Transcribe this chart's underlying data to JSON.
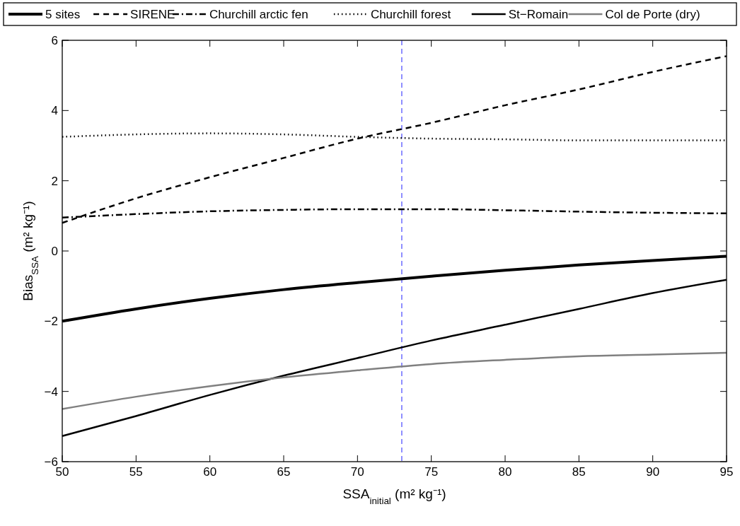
{
  "chart_data": {
    "type": "line",
    "xlabel": "SSA$_{initial}$ (m² kg⁻¹)",
    "ylabel": "Bias$_{SSA}$ (m² kg⁻¹)",
    "x": [
      50,
      55,
      60,
      65,
      70,
      75,
      80,
      85,
      90,
      95
    ],
    "xlim": [
      50,
      95
    ],
    "xticks": [
      50,
      55,
      60,
      65,
      70,
      75,
      80,
      85,
      90,
      95
    ],
    "ylim": [
      -6,
      6
    ],
    "yticks": [
      -6,
      -4,
      -2,
      0,
      2,
      4,
      6
    ],
    "grid": false,
    "legend": "top",
    "marker": "none",
    "series": [
      {
        "name": "5 sites",
        "color": "#000000",
        "line_style": "solid",
        "values": [
          -2,
          -1.65,
          -1.35,
          -1.1,
          -0.9,
          -0.72,
          -0.55,
          -0.4,
          -0.27,
          -0.15
        ]
      },
      {
        "name": "SIRENE",
        "color": "#000000",
        "line_style": "dashed",
        "values": [
          0.8,
          1.5,
          2.1,
          2.65,
          3.2,
          3.65,
          4.15,
          4.6,
          5.1,
          5.55
        ]
      },
      {
        "name": "Churchill arctic fen",
        "color": "#000000",
        "line_style": "dashdot",
        "values": [
          0.95,
          1.05,
          1.13,
          1.17,
          1.19,
          1.19,
          1.16,
          1.12,
          1.09,
          1.07
        ]
      },
      {
        "name": "Churchill forest",
        "color": "#000000",
        "line_style": "dotted",
        "values": [
          3.25,
          3.32,
          3.35,
          3.32,
          3.25,
          3.2,
          3.18,
          3.15,
          3.15,
          3.15
        ]
      },
      {
        "name": "St−Romain",
        "color": "#000000",
        "line_style": "solid",
        "values": [
          -5.27,
          -4.7,
          -4.1,
          -3.55,
          -3.05,
          -2.55,
          -2.1,
          -1.65,
          -1.2,
          -0.82
        ]
      },
      {
        "name": "Col de Porte (dry)",
        "color": "#808080",
        "line_style": "solid",
        "values": [
          -4.5,
          -4.15,
          -3.85,
          -3.6,
          -3.4,
          -3.22,
          -3.1,
          -3.0,
          -2.95,
          -2.9
        ]
      }
    ],
    "ref_lines": [
      {
        "axis": "x",
        "value": 73,
        "color": "#5555ff",
        "line_style": "dashed"
      }
    ]
  }
}
